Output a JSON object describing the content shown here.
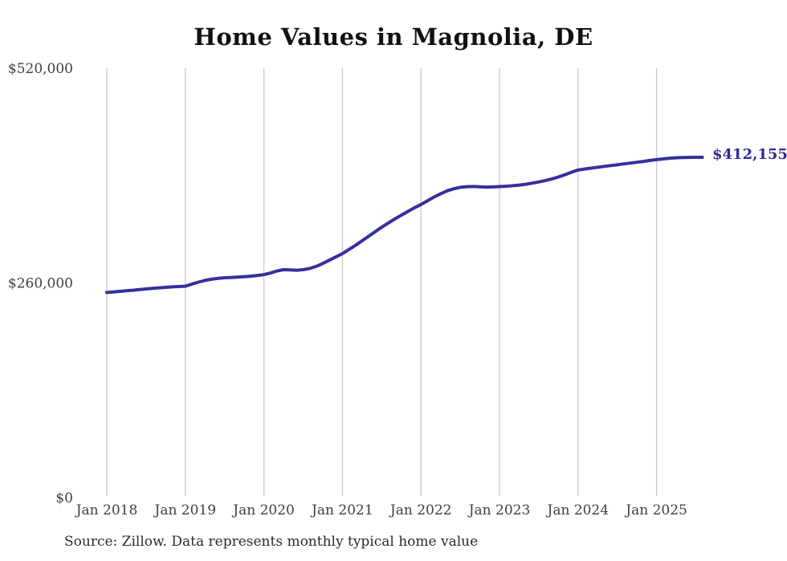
{
  "title": "Home Values in Magnolia, DE",
  "source_note": "Source: Zillow. Data represents monthly typical home value",
  "end_label": "$412,155",
  "colors": {
    "line": "#35309c",
    "end_label_text": "#2e2a96",
    "gridline": "#c9c9c9",
    "axis_text": "#3f3f3f",
    "title_text": "#111111",
    "source_text": "#2b2b2b",
    "background": "#ffffff"
  },
  "chart_data": {
    "type": "line",
    "title": "Home Values in Magnolia, DE",
    "xlabel": "",
    "ylabel": "",
    "x_tick_labels": [
      "Jan 2018",
      "Jan 2019",
      "Jan 2020",
      "Jan 2021",
      "Jan 2022",
      "Jan 2023",
      "Jan 2024",
      "Jan 2025"
    ],
    "y_ticks": [
      {
        "label": "$0",
        "value": 0
      },
      {
        "label": "$260,000",
        "value": 260000
      },
      {
        "label": "$520,000",
        "value": 520000
      }
    ],
    "ylim": [
      0,
      520000
    ],
    "grid": "vertical gridlines at each January only",
    "legend": "none",
    "annotation": {
      "text": "$412,155",
      "position": "right end of line"
    },
    "series": [
      {
        "name": "Typical home value",
        "frequency": "monthly",
        "start_month": "2018-01",
        "end_month": "2025-08",
        "values": [
          248400,
          249100,
          249800,
          250500,
          251200,
          252000,
          252700,
          253400,
          254100,
          254700,
          255200,
          255600,
          256000,
          258500,
          261000,
          263000,
          264500,
          265500,
          266200,
          266600,
          267000,
          267500,
          268200,
          269000,
          270000,
          272000,
          274500,
          276000,
          275800,
          275400,
          276000,
          277500,
          280000,
          283500,
          287500,
          291500,
          295500,
          300500,
          305500,
          311000,
          316500,
          322000,
          327500,
          332500,
          337500,
          342000,
          346500,
          351000,
          355000,
          359500,
          364000,
          368000,
          371500,
          374000,
          375800,
          376500,
          376700,
          376400,
          376100,
          376200,
          376600,
          377100,
          377700,
          378500,
          379500,
          380800,
          382300,
          384000,
          386000,
          388300,
          391000,
          394000,
          396800,
          397900,
          399000,
          400100,
          401100,
          402100,
          403100,
          404100,
          405100,
          406100,
          407200,
          408300,
          409300,
          410200,
          411000,
          411500,
          411800,
          412000,
          412100,
          412155
        ]
      }
    ]
  }
}
